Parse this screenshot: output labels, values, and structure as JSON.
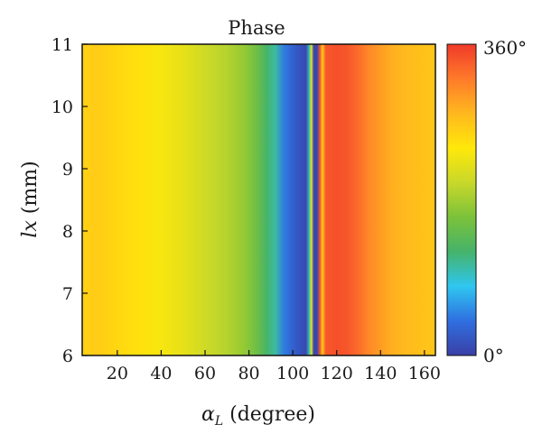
{
  "chart_data": {
    "type": "heatmap",
    "title": "Phase",
    "xlabel": "(degree)",
    "xlabel_symbol": "α",
    "xlabel_subscript": "L",
    "ylabel": "(mm)",
    "ylabel_symbol": "lx",
    "xlim": [
      4,
      165
    ],
    "ylim": [
      6,
      11
    ],
    "xticks": [
      20,
      40,
      60,
      80,
      100,
      120,
      140,
      160
    ],
    "yticks": [
      6,
      7,
      8,
      9,
      10,
      11
    ],
    "x_tick_labels": [
      "20",
      "40",
      "60",
      "80",
      "100",
      "120",
      "140",
      "160"
    ],
    "y_tick_labels": [
      "6",
      "7",
      "8",
      "9",
      "10",
      "11"
    ],
    "colorbar": {
      "min_label": "0°",
      "max_label": "360°",
      "range": [
        0,
        360
      ],
      "colormap": "jet",
      "stops": [
        "#3a3fa6",
        "#2f6fe0",
        "#2fc6f0",
        "#45b36a",
        "#7cc23a",
        "#c8d82a",
        "#ffe80a",
        "#ffb81e",
        "#ff7a2a",
        "#f03a2a"
      ]
    },
    "x": [
      4,
      10,
      20,
      30,
      40,
      50,
      60,
      70,
      78,
      84,
      88,
      92,
      96,
      100,
      104,
      106,
      107.5,
      108.5,
      109.5,
      111,
      112.5,
      113.5,
      115,
      120,
      125,
      130,
      135,
      140,
      145,
      150,
      155,
      160,
      165
    ],
    "values": [
      258,
      264,
      254,
      246,
      234,
      222,
      205,
      190,
      172,
      148,
      122,
      104,
      46,
      28,
      14,
      8,
      98,
      230,
      8,
      4,
      338,
      262,
      342,
      346,
      342,
      328,
      310,
      298,
      286,
      280,
      276,
      272,
      268
    ]
  }
}
